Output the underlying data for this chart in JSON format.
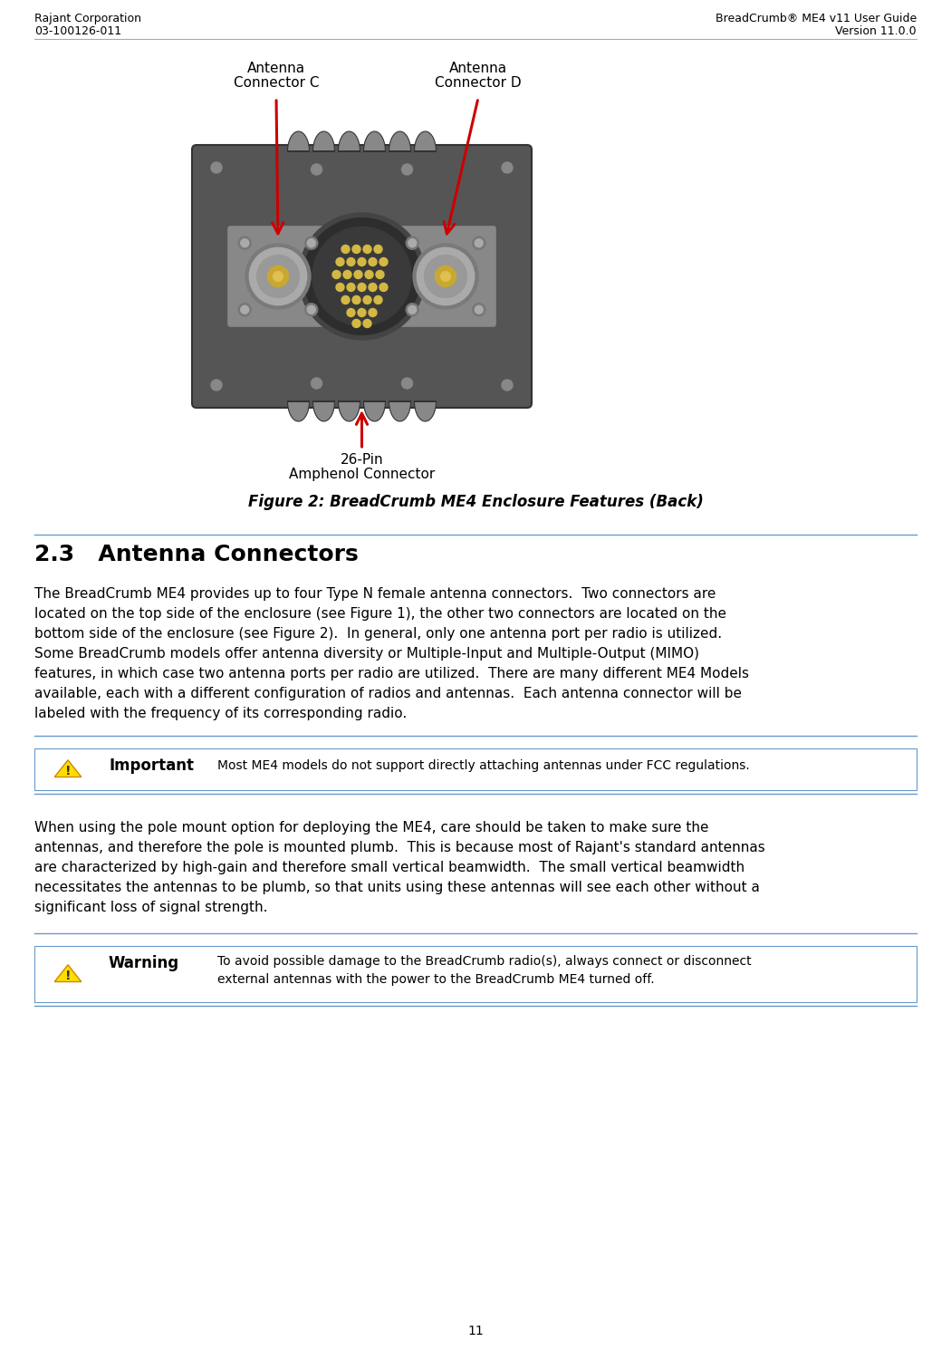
{
  "header_left_line1": "Rajant Corporation",
  "header_left_line2": "03-100126-011",
  "header_right_line1": "BreadCrumb® ME4 v11 User Guide",
  "header_right_line2": "Version 11.0.0",
  "figure_caption": "Figure 2: BreadCrumb ME4 Enclosure Features (Back)",
  "section_title": "2.3   Antenna Connectors",
  "body_text_lines": [
    "The BreadCrumb ME4 provides up to four Type N female antenna connectors.  Two connectors are",
    "located on the top side of the enclosure (see Figure 1), the other two connectors are located on the",
    "bottom side of the enclosure (see Figure 2).  In general, only one antenna port per radio is utilized.",
    "Some BreadCrumb models offer antenna diversity or Multiple-Input and Multiple-Output (MIMO)",
    "features, in which case two antenna ports per radio are utilized.  There are many different ME4 Models",
    "available, each with a different configuration of radios and antennas.  Each antenna connector will be",
    "labeled with the frequency of its corresponding radio."
  ],
  "important_label": "Important",
  "important_text": "Most ME4 models do not support directly attaching antennas under FCC regulations.",
  "body_text2_lines": [
    "When using the pole mount option for deploying the ME4, care should be taken to make sure the",
    "antennas, and therefore the pole is mounted plumb.  This is because most of Rajant's standard antennas",
    "are characterized by high-gain and therefore small vertical beamwidth.  The small vertical beamwidth",
    "necessitates the antennas to be plumb, so that units using these antennas will see each other without a",
    "significant loss of signal strength."
  ],
  "warning_label": "Warning",
  "warning_text_line1": "To avoid possible damage to the BreadCrumb radio(s), always connect or disconnect",
  "warning_text_line2": "external antennas with the power to the BreadCrumb ME4 turned off.",
  "page_number": "11",
  "label_connector_c_line1": "Antenna",
  "label_connector_c_line2": "Connector C",
  "label_connector_d_line1": "Antenna",
  "label_connector_d_line2": "Connector D",
  "label_26pin_line1": "26-Pin",
  "label_26pin_line2": "Amphenol Connector",
  "bg_color": "#ffffff",
  "header_line_color": "#aaaaaa",
  "separator_color": "#6699cc",
  "text_color": "#000000",
  "arrow_color": "#cc0000",
  "device_body_color": "#555555",
  "device_dark_color": "#3a3a3a",
  "device_medium_color": "#6a6a6a",
  "connector_outer_color": "#7a7a7a",
  "connector_mid_color": "#999999",
  "connector_gold_color": "#c8a830",
  "fin_color": "#888888",
  "screw_color": "#aaaaaa",
  "pin_color": "#d4b844"
}
